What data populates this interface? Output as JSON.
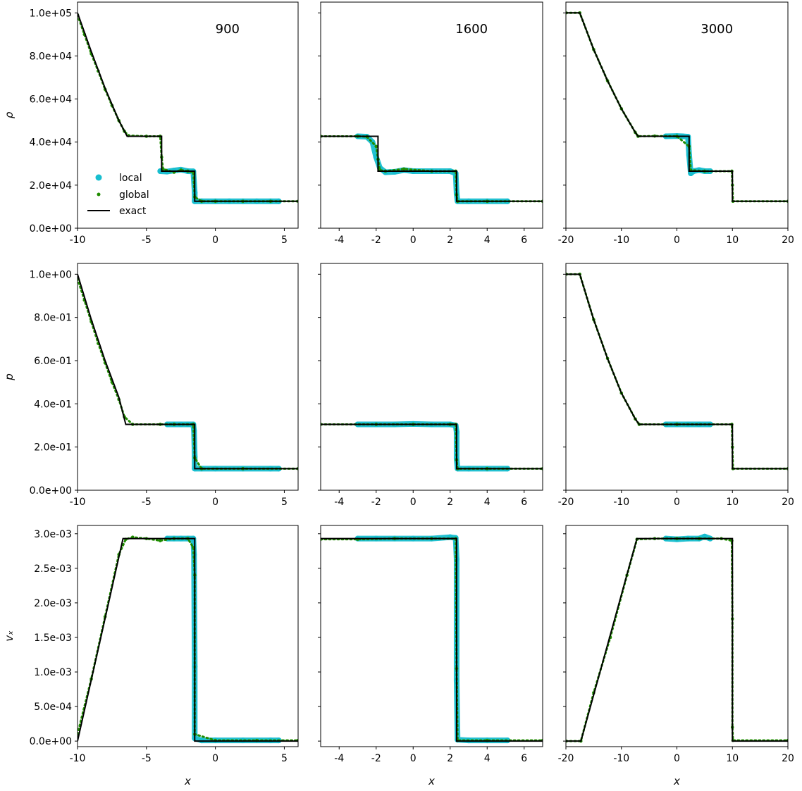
{
  "colors": {
    "local": "#17becf",
    "global": "#1f8c00",
    "exact": "#000000"
  },
  "columns": [
    {
      "title": "900",
      "xlim": [
        -10,
        6
      ],
      "xticks": [
        -10,
        -5,
        0,
        5
      ],
      "xtick_labels": [
        "-10",
        "-5",
        "0",
        "5"
      ]
    },
    {
      "title": "1600",
      "xlim": [
        -5,
        7
      ],
      "xticks": [
        -4,
        -2,
        0,
        2,
        4,
        6
      ],
      "xtick_labels": [
        "-4",
        "-2",
        "0",
        "2",
        "4",
        "6"
      ]
    },
    {
      "title": "3000",
      "xlim": [
        -20,
        20
      ],
      "xticks": [
        -20,
        -10,
        0,
        10,
        20
      ],
      "xtick_labels": [
        "-20",
        "-10",
        "0",
        "10",
        "20"
      ]
    }
  ],
  "rows": [
    {
      "ylabel": "ρ",
      "ylim": [
        0,
        105000
      ],
      "yticks": [
        0,
        20000,
        40000,
        60000,
        80000,
        100000
      ],
      "ytick_labels": [
        "0.0e+00",
        "2.0e+04",
        "4.0e+04",
        "6.0e+04",
        "8.0e+04",
        "1.0e+05"
      ]
    },
    {
      "ylabel": "p",
      "ylim": [
        0,
        1.05
      ],
      "yticks": [
        0,
        0.2,
        0.4,
        0.6,
        0.8,
        1.0
      ],
      "ytick_labels": [
        "0.0e+00",
        "2.0e-01",
        "4.0e-01",
        "6.0e-01",
        "8.0e-01",
        "1.0e+00"
      ]
    },
    {
      "ylabel": "vₓ",
      "ylim": [
        -8e-05,
        0.00312
      ],
      "yticks": [
        0,
        0.0005,
        0.001,
        0.0015,
        0.002,
        0.0025,
        0.003
      ],
      "ytick_labels": [
        "0.0e+00",
        "5.0e-04",
        "1.0e-03",
        "1.5e-03",
        "2.0e-03",
        "2.5e-03",
        "3.0e-03"
      ]
    }
  ],
  "xlabel": "x",
  "legend": {
    "entries": [
      "local",
      "global",
      "exact"
    ],
    "location": "lower-left of top-left panel"
  },
  "chart_data": [
    {
      "type": "line",
      "row": 0,
      "col": 0,
      "title": "900",
      "ylabel": "ρ",
      "xlabel": "",
      "series": [
        {
          "name": "exact",
          "x": [
            -10,
            -9,
            -8,
            -7,
            -6.4,
            -3.9,
            -3.9,
            -1.5,
            -1.5,
            6
          ],
          "y": [
            100000,
            82000,
            65000,
            50000,
            42700,
            42700,
            26500,
            26500,
            12500,
            12500
          ]
        },
        {
          "name": "local",
          "x": [
            -4,
            -3.5,
            -3,
            -2.5,
            -2,
            -1.6,
            -1.5,
            -1.5,
            -1,
            0,
            1,
            2,
            3,
            4,
            4.6
          ],
          "y": [
            26500,
            26300,
            26800,
            27200,
            26500,
            26400,
            16500,
            12500,
            12500,
            12500,
            12500,
            12500,
            12500,
            12500,
            12500
          ]
        },
        {
          "name": "global",
          "x": [
            -10,
            -9.5,
            -9,
            -8.5,
            -8,
            -7.5,
            -7,
            -6.6,
            -6.3,
            -5,
            -4,
            -3.9,
            -3.8,
            -3,
            -2.5,
            -2,
            -1.6,
            -1.5,
            -1,
            0,
            2,
            4,
            6
          ],
          "y": [
            99000,
            90000,
            81000,
            73000,
            64500,
            57000,
            50000,
            45000,
            43000,
            42700,
            42700,
            33000,
            27500,
            26000,
            27000,
            26500,
            26000,
            14500,
            12500,
            12500,
            12500,
            12500,
            12500
          ]
        }
      ]
    },
    {
      "type": "line",
      "row": 0,
      "col": 1,
      "title": "1600",
      "ylabel": "",
      "xlabel": "",
      "series": [
        {
          "name": "exact",
          "x": [
            -5,
            -1.9,
            -1.9,
            2.35,
            2.35,
            7
          ],
          "y": [
            42700,
            42700,
            26500,
            26500,
            12500,
            12500
          ]
        },
        {
          "name": "local",
          "x": [
            -3,
            -2.5,
            -2.2,
            -2,
            -1.8,
            -1.5,
            -1,
            -0.5,
            0,
            1,
            2,
            2.3,
            2.35,
            2.4,
            3,
            4,
            5.1
          ],
          "y": [
            42700,
            42500,
            40000,
            33000,
            28000,
            26000,
            26200,
            27000,
            26500,
            26500,
            26500,
            25500,
            16000,
            12500,
            12500,
            12500,
            12500
          ]
        },
        {
          "name": "global",
          "x": [
            -5,
            -3,
            -2.5,
            -2,
            -1.9,
            -1.8,
            -1.5,
            -0.5,
            1,
            2.3,
            2.35,
            2.4,
            4,
            7
          ],
          "y": [
            42700,
            42700,
            42500,
            38000,
            32000,
            27000,
            26500,
            27500,
            26500,
            26500,
            15500,
            12500,
            12500,
            12500
          ]
        }
      ]
    },
    {
      "type": "line",
      "row": 0,
      "col": 2,
      "title": "3000",
      "ylabel": "",
      "xlabel": "",
      "series": [
        {
          "name": "exact",
          "x": [
            -20,
            -17.5,
            -15,
            -12.5,
            -10,
            -7.5,
            -7,
            2.2,
            2.2,
            10,
            10,
            20
          ],
          "y": [
            100000,
            100000,
            83000,
            68500,
            55500,
            44500,
            42700,
            42700,
            26500,
            26500,
            12500,
            12500
          ]
        },
        {
          "name": "local",
          "x": [
            -2,
            0,
            1,
            2,
            2.2,
            2.5,
            3,
            4,
            5,
            6
          ],
          "y": [
            42700,
            42800,
            42700,
            42500,
            34000,
            25500,
            26500,
            27000,
            26500,
            26500
          ]
        },
        {
          "name": "global",
          "x": [
            -20,
            -17.5,
            -15,
            -12.5,
            -10,
            -7.5,
            -7,
            -4,
            0,
            2.2,
            2.5,
            5,
            9.9,
            10,
            10.1,
            20
          ],
          "y": [
            100000,
            100000,
            83000,
            68500,
            55500,
            44500,
            42700,
            42800,
            42700,
            38000,
            27000,
            26500,
            26500,
            20000,
            12500,
            12500
          ]
        }
      ]
    },
    {
      "type": "line",
      "row": 1,
      "col": 0,
      "ylabel": "p",
      "xlabel": "",
      "series": [
        {
          "name": "exact",
          "x": [
            -10,
            -9,
            -8,
            -7,
            -6.5,
            -1.5,
            -1.5,
            6
          ],
          "y": [
            1.0,
            0.79,
            0.6,
            0.43,
            0.305,
            0.305,
            0.1,
            0.1
          ]
        },
        {
          "name": "local",
          "x": [
            -3.5,
            -3,
            -2.5,
            -2,
            -1.6,
            -1.55,
            -1.5,
            -1.5,
            -1,
            0,
            2,
            4,
            4.6
          ],
          "y": [
            0.305,
            0.305,
            0.305,
            0.305,
            0.305,
            0.275,
            0.155,
            0.1,
            0.1,
            0.1,
            0.1,
            0.1,
            0.1
          ]
        },
        {
          "name": "global",
          "x": [
            -10,
            -9.5,
            -9,
            -8.5,
            -8,
            -7.5,
            -7,
            -6.6,
            -6,
            -4,
            -3,
            -1.6,
            -1.5,
            -1,
            2,
            6
          ],
          "y": [
            0.98,
            0.88,
            0.78,
            0.68,
            0.59,
            0.5,
            0.42,
            0.34,
            0.305,
            0.305,
            0.305,
            0.305,
            0.15,
            0.1,
            0.1,
            0.1
          ]
        }
      ]
    },
    {
      "type": "line",
      "row": 1,
      "col": 1,
      "ylabel": "",
      "xlabel": "",
      "series": [
        {
          "name": "exact",
          "x": [
            -5,
            2.35,
            2.35,
            7
          ],
          "y": [
            0.305,
            0.305,
            0.1,
            0.1
          ]
        },
        {
          "name": "local",
          "x": [
            -3,
            -2,
            -1,
            0,
            1,
            2,
            2.3,
            2.35,
            2.35,
            2.4,
            3,
            4,
            5.1
          ],
          "y": [
            0.305,
            0.305,
            0.305,
            0.307,
            0.305,
            0.305,
            0.3,
            0.27,
            0.145,
            0.1,
            0.1,
            0.1,
            0.1
          ]
        },
        {
          "name": "global",
          "x": [
            -5,
            -2,
            0,
            2,
            2.3,
            2.35,
            2.4,
            4,
            7
          ],
          "y": [
            0.305,
            0.305,
            0.305,
            0.305,
            0.305,
            0.14,
            0.1,
            0.1,
            0.1
          ]
        }
      ]
    },
    {
      "type": "line",
      "row": 1,
      "col": 2,
      "ylabel": "",
      "xlabel": "",
      "series": [
        {
          "name": "exact",
          "x": [
            -20,
            -17.5,
            -15,
            -12.5,
            -10,
            -7.5,
            -6.8,
            10,
            10,
            20
          ],
          "y": [
            1.0,
            1.0,
            0.79,
            0.61,
            0.45,
            0.33,
            0.305,
            0.305,
            0.1,
            0.1
          ]
        },
        {
          "name": "local",
          "x": [
            -2,
            0,
            2,
            4,
            6
          ],
          "y": [
            0.305,
            0.305,
            0.305,
            0.305,
            0.305
          ]
        },
        {
          "name": "global",
          "x": [
            -20,
            -17.5,
            -15,
            -12.5,
            -10,
            -7.5,
            -6.8,
            0,
            9.9,
            10,
            10.1,
            20
          ],
          "y": [
            1.0,
            1.0,
            0.79,
            0.61,
            0.45,
            0.33,
            0.305,
            0.305,
            0.305,
            0.2,
            0.1,
            0.1
          ]
        }
      ]
    },
    {
      "type": "line",
      "row": 2,
      "col": 0,
      "ylabel": "vₓ",
      "xlabel": "x",
      "series": [
        {
          "name": "exact",
          "x": [
            -10,
            -6.7,
            -1.5,
            -1.5,
            6
          ],
          "y": [
            0,
            0.00293,
            0.00293,
            0,
            0
          ]
        },
        {
          "name": "local",
          "x": [
            -3.5,
            -3,
            -2.5,
            -2,
            -1.6,
            -1.55,
            -1.5,
            -1.5,
            -1,
            0,
            2,
            4,
            4.6
          ],
          "y": [
            0.00293,
            0.00293,
            0.00293,
            0.00293,
            0.00293,
            0.0027,
            0.00108,
            4e-05,
            1e-05,
            1e-05,
            1e-05,
            1e-05,
            1e-05
          ]
        },
        {
          "name": "global",
          "x": [
            -10,
            -9,
            -8,
            -7,
            -6.5,
            -6,
            -5,
            -4,
            -3,
            -2,
            -1.6,
            -1.5,
            -1.5,
            0,
            3,
            6
          ],
          "y": [
            0.0001,
            0.0009,
            0.0018,
            0.0027,
            0.00292,
            0.00295,
            0.00293,
            0.0029,
            0.00293,
            0.00293,
            0.0028,
            0.0024,
            0.0001,
            1e-05,
            1e-05,
            1e-05
          ]
        }
      ]
    },
    {
      "type": "line",
      "row": 2,
      "col": 1,
      "ylabel": "",
      "xlabel": "x",
      "series": [
        {
          "name": "exact",
          "x": [
            -5,
            2.35,
            2.35,
            7
          ],
          "y": [
            0.00293,
            0.00293,
            0,
            0
          ]
        },
        {
          "name": "local",
          "x": [
            -3,
            -2,
            -1,
            0,
            1,
            2,
            2.3,
            2.35,
            2.35,
            2.4,
            3,
            4,
            5.1
          ],
          "y": [
            0.00293,
            0.00293,
            0.00293,
            0.00293,
            0.00293,
            0.00295,
            0.00294,
            0.00263,
            0.00088,
            2e-05,
            1e-05,
            1e-05,
            1e-05
          ]
        },
        {
          "name": "global",
          "x": [
            -5,
            -3,
            -1,
            1,
            2.3,
            2.35,
            2.4,
            4,
            7
          ],
          "y": [
            0.00292,
            0.00292,
            0.00293,
            0.00293,
            0.00293,
            0.00105,
            1e-05,
            1e-05,
            1e-05
          ]
        }
      ]
    },
    {
      "type": "line",
      "row": 2,
      "col": 2,
      "ylabel": "",
      "xlabel": "x",
      "series": [
        {
          "name": "exact",
          "x": [
            -20,
            -17.3,
            -7.2,
            10,
            10,
            20
          ],
          "y": [
            0,
            0,
            0.00293,
            0.00293,
            0,
            0
          ]
        },
        {
          "name": "local",
          "x": [
            -2,
            0,
            2,
            4,
            5,
            6
          ],
          "y": [
            0.00293,
            0.00292,
            0.00293,
            0.00293,
            0.00296,
            0.00293
          ]
        },
        {
          "name": "global",
          "x": [
            -20,
            -17.3,
            -15,
            -12,
            -9,
            -7.2,
            -4,
            0,
            4,
            8,
            9.9,
            10,
            10,
            10.1,
            20
          ],
          "y": [
            0,
            0,
            0.0007,
            0.0015,
            0.0024,
            0.00292,
            0.00293,
            0.00293,
            0.00293,
            0.00293,
            0.0029,
            0.00177,
            0.0002,
            1e-05,
            1e-05
          ]
        }
      ]
    }
  ]
}
